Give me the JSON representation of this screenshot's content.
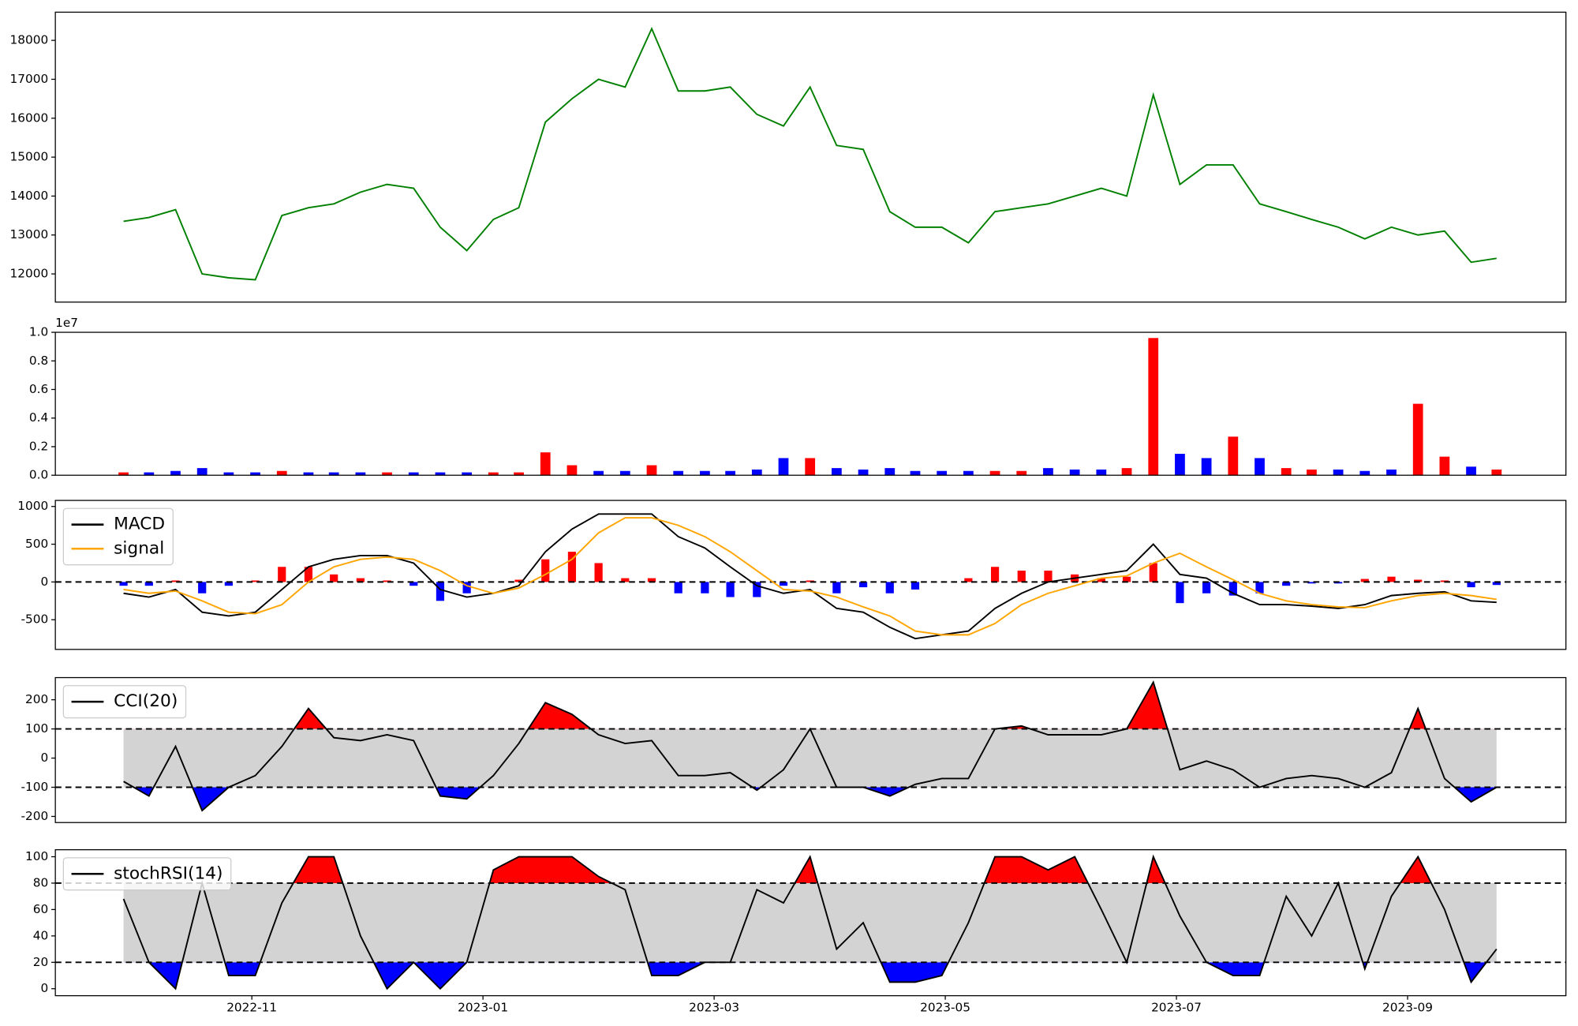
{
  "chart_data": [
    {
      "type": "line",
      "ylim": [
        11276,
        18724
      ],
      "yticks": [
        12000,
        13000,
        14000,
        15000,
        16000,
        17000,
        18000
      ],
      "series": [
        {
          "color": "green",
          "values": [
            13350,
            13450,
            13650,
            12000,
            11900,
            11850,
            13500,
            13700,
            13800,
            14100,
            14300,
            14200,
            13200,
            12600,
            13400,
            13700,
            15900,
            16500,
            17000,
            16800,
            18300,
            16700,
            16700,
            16800,
            16100,
            15800,
            16800,
            15300,
            15200,
            13600,
            13200,
            13200,
            12800,
            13600,
            13700,
            13800,
            14000,
            14200,
            14000,
            16600,
            14300,
            14800,
            14800,
            13800,
            13600,
            13400,
            13200,
            12900,
            13200,
            13000,
            13100,
            12300,
            12400
          ]
        }
      ]
    },
    {
      "type": "bar",
      "offset_text": "1e7",
      "ylim": [
        {
          "value": 0,
          "label": "0.0"
        },
        {
          "value": 1,
          "label": "1.0"
        }
      ],
      "yticks": [
        {
          "value": 0,
          "label": "0.0"
        },
        0.2,
        0.4,
        0.6,
        0.8,
        {
          "value": 1,
          "label": "1.0"
        }
      ],
      "values": [
        0.02,
        0.02,
        0.03,
        0.05,
        0.02,
        0.02,
        0.03,
        0.02,
        0.02,
        0.02,
        0.02,
        0.02,
        0.02,
        0.02,
        0.02,
        0.02,
        0.16,
        0.07,
        0.03,
        0.03,
        0.07,
        0.03,
        0.03,
        0.03,
        0.04,
        0.12,
        0.12,
        0.05,
        0.04,
        0.05,
        0.03,
        0.03,
        0.03,
        0.03,
        0.03,
        0.05,
        0.04,
        0.04,
        0.05,
        0.96,
        0.15,
        0.12,
        0.27,
        0.12,
        0.05,
        0.04,
        0.04,
        0.03,
        0.04,
        0.5,
        0.13,
        0.06,
        0.04
      ],
      "colors": [
        "red",
        "blue",
        "blue",
        "blue",
        "blue",
        "blue",
        "red",
        "blue",
        "blue",
        "blue",
        "red",
        "blue",
        "blue",
        "blue",
        "red",
        "red",
        "red",
        "red",
        "blue",
        "blue",
        "red",
        "blue",
        "blue",
        "blue",
        "blue",
        "blue",
        "red",
        "blue",
        "blue",
        "blue",
        "blue",
        "blue",
        "blue",
        "red",
        "red",
        "blue",
        "blue",
        "blue",
        "red",
        "red",
        "blue",
        "blue",
        "red",
        "blue",
        "red",
        "red",
        "blue",
        "blue",
        "blue",
        "red",
        "red",
        "blue",
        "red"
      ]
    },
    {
      "type": "macd",
      "ylim": [
        -893,
        1080
      ],
      "yticks": [
        -500,
        0,
        500,
        1000
      ],
      "hlines": [
        0
      ],
      "legend": "upper left",
      "series": [
        {
          "name": "MACD",
          "color": "black",
          "values": [
            -150,
            -200,
            -100,
            -400,
            -450,
            -400,
            -100,
            200,
            300,
            350,
            350,
            250,
            -100,
            -200,
            -150,
            -50,
            400,
            700,
            900,
            900,
            900,
            600,
            450,
            200,
            -50,
            -150,
            -100,
            -350,
            -400,
            -600,
            -750,
            -700,
            -650,
            -350,
            -150,
            0,
            50,
            100,
            150,
            500,
            100,
            50,
            -150,
            -300,
            -300,
            -320,
            -350,
            -300,
            -180,
            -150,
            -130,
            -250,
            -270
          ]
        },
        {
          "name": "signal",
          "color": "orange",
          "values": [
            -100,
            -150,
            -120,
            -250,
            -400,
            -420,
            -300,
            0,
            200,
            300,
            330,
            300,
            150,
            -50,
            -150,
            -80,
            100,
            300,
            650,
            850,
            850,
            750,
            600,
            400,
            150,
            -100,
            -120,
            -200,
            -330,
            -450,
            -650,
            -700,
            -700,
            -550,
            -300,
            -150,
            -50,
            50,
            80,
            250,
            380,
            200,
            30,
            -150,
            -250,
            -300,
            -330,
            -340,
            -250,
            -180,
            -150,
            -180,
            -230
          ]
        }
      ],
      "histogram": {
        "up_color": "red",
        "down_color": "blue",
        "values": [
          -50,
          -50,
          20,
          -150,
          -50,
          20,
          200,
          200,
          100,
          50,
          20,
          -50,
          -250,
          -150,
          0,
          30,
          300,
          400,
          250,
          50,
          50,
          -150,
          -150,
          -200,
          -200,
          -50,
          20,
          -150,
          -70,
          -150,
          -100,
          0,
          50,
          200,
          150,
          150,
          100,
          50,
          70,
          250,
          -280,
          -150,
          -180,
          -150,
          -50,
          -20,
          -20,
          40,
          70,
          30,
          20,
          -70,
          -40
        ]
      }
    },
    {
      "type": "oscillator",
      "ylim": [
        -221,
        276
      ],
      "yticks": [
        -200,
        -100,
        0,
        100,
        200
      ],
      "bands": [
        -100,
        100
      ],
      "band_color": "lightgray",
      "upper_color": "red",
      "lower_color": "blue",
      "legend": "upper left",
      "series": [
        {
          "name": "CCI(20)",
          "color": "black",
          "values": [
            -80,
            -130,
            40,
            -180,
            -100,
            -60,
            40,
            170,
            70,
            60,
            80,
            60,
            -130,
            -140,
            -60,
            50,
            190,
            150,
            80,
            50,
            60,
            -60,
            -60,
            -50,
            -110,
            -40,
            100,
            -100,
            -100,
            -130,
            -90,
            -70,
            -70,
            100,
            110,
            80,
            80,
            80,
            100,
            260,
            -40,
            -10,
            -40,
            -100,
            -70,
            -60,
            -70,
            -100,
            -50,
            170,
            -70,
            -150,
            -100
          ]
        }
      ]
    },
    {
      "type": "oscillator",
      "ylim": [
        -5.3,
        105.3
      ],
      "yticks": [
        0,
        20,
        40,
        60,
        80,
        100
      ],
      "bands": [
        20,
        80
      ],
      "band_color": "lightgray",
      "upper_color": "red",
      "lower_color": "blue",
      "legend": "upper left",
      "xlim": [
        8.3,
        21.37
      ],
      "xticks": [
        {
          "value": 10,
          "label": "2022-11"
        },
        {
          "value": 12,
          "label": "2023-01"
        },
        {
          "value": 14,
          "label": "2023-03"
        },
        {
          "value": 16,
          "label": "2023-05"
        },
        {
          "value": 18,
          "label": "2023-07"
        },
        {
          "value": 20,
          "label": "2023-09"
        }
      ],
      "x": [
        8.89,
        9.11,
        9.34,
        9.57,
        9.8,
        10.03,
        10.26,
        10.49,
        10.71,
        10.94,
        11.17,
        11.4,
        11.63,
        11.86,
        12.09,
        12.31,
        12.54,
        12.77,
        13.0,
        13.23,
        13.46,
        13.69,
        13.92,
        14.14,
        14.37,
        14.6,
        14.83,
        15.06,
        15.29,
        15.52,
        15.74,
        15.97,
        16.2,
        16.43,
        16.66,
        16.89,
        17.12,
        17.35,
        17.57,
        17.8,
        18.03,
        18.26,
        18.49,
        18.72,
        18.95,
        19.17,
        19.4,
        19.63,
        19.86,
        20.09,
        20.32,
        20.55,
        20.77
      ],
      "series": [
        {
          "name": "stochRSI(14)",
          "color": "black",
          "values": [
            68,
            20,
            0,
            80,
            10,
            10,
            65,
            100,
            100,
            40,
            0,
            20,
            0,
            20,
            90,
            100,
            100,
            100,
            85,
            75,
            10,
            10,
            20,
            20,
            75,
            65,
            100,
            30,
            50,
            5,
            5,
            10,
            50,
            100,
            100,
            90,
            100,
            60,
            20,
            100,
            55,
            20,
            10,
            10,
            70,
            40,
            80,
            15,
            70,
            100,
            60,
            5,
            30
          ]
        }
      ]
    }
  ]
}
